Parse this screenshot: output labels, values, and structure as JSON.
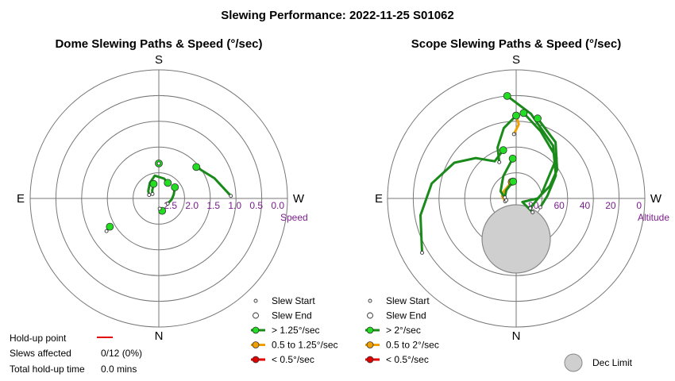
{
  "title": "Slewing Performance: 2022-11-25 S01062",
  "chart_data": [
    {
      "type": "polar",
      "title": "Dome Slewing Paths & Speed (°/sec)",
      "cardinals": {
        "top": "S",
        "left": "E",
        "right": "W",
        "bottom": "N"
      },
      "radial_label": "Speed",
      "radial_ticks": [
        "2.5",
        "2.0",
        "1.5",
        "1.0",
        "0.5",
        "0.0"
      ],
      "speed_range": [
        0.0,
        2.5
      ],
      "note": "polar angle = azimuth; radius = speed (outer ring = 0.0 °/sec)",
      "paths": [
        {
          "speed_class": "fast",
          "points": [
            [
              180,
              1.82
            ],
            [
              180,
              1.82
            ]
          ]
        },
        {
          "speed_class": "fast",
          "points": [
            [
              230,
              1.55
            ],
            [
              250,
              1.35
            ],
            [
              268,
              1.1
            ]
          ]
        },
        {
          "speed_class": "fast",
          "points": [
            [
              60,
              1.4
            ],
            [
              58,
              1.3
            ]
          ]
        },
        {
          "speed_class": "fast",
          "points": [
            [
              210,
              2.15
            ],
            [
              195,
              2.1
            ],
            [
              170,
              2.05
            ],
            [
              150,
              2.15
            ],
            [
              125,
              2.25
            ],
            [
              110,
              2.3
            ]
          ]
        },
        {
          "speed_class": "fast",
          "points": [
            [
              235,
              2.12
            ],
            [
              255,
              2.2
            ],
            [
              275,
              2.25
            ],
            [
              300,
              2.3
            ]
          ]
        },
        {
          "speed_class": "fast",
          "points": [
            [
              160,
              2.2
            ],
            [
              140,
              2.3
            ],
            [
              125,
              2.35
            ]
          ]
        },
        {
          "speed_class": "fast",
          "points": [
            [
              345,
              2.25
            ],
            [
              355,
              2.3
            ]
          ]
        }
      ],
      "legend": [
        {
          "label": "Slew Start",
          "kind": "start"
        },
        {
          "label": "Slew End",
          "kind": "end"
        },
        {
          "label": "> 1.25°/sec",
          "kind": "line",
          "color": "#1a8a1a",
          "marker": "#22dd22"
        },
        {
          "label": "0.5 to 1.25°/sec",
          "kind": "line",
          "color": "#f0a000",
          "marker": "#f0a000"
        },
        {
          "label": "< 0.5°/sec",
          "kind": "line",
          "color": "#e00000",
          "marker": "#e00000"
        }
      ],
      "holdup": {
        "point_label": "Hold-up point",
        "affected_label": "Slews affected",
        "affected_value": "0/12 (0%)",
        "total_label": "Total hold-up time",
        "total_value": "0.0 mins",
        "line_color": "#e00000"
      }
    },
    {
      "type": "polar",
      "title": "Scope Slewing Paths & Speed (°/sec)",
      "cardinals": {
        "top": "S",
        "left": "E",
        "right": "W",
        "bottom": "N"
      },
      "radial_label": "Altitude",
      "radial_ticks": [
        "80",
        "60",
        "40",
        "20",
        "0"
      ],
      "altitude_range": [
        0,
        90
      ],
      "note": "polar angle = azimuth; radius = 90 - altitude",
      "paths": [
        {
          "speed_class": "medium",
          "points": [
            [
              180,
              32
            ],
            [
              182,
              38
            ],
            [
              178,
              45
            ]
          ]
        },
        {
          "speed_class": "fast",
          "points": [
            [
              180,
              32
            ],
            [
              170,
              40
            ],
            [
              160,
              52
            ],
            [
              155,
              62
            ]
          ]
        },
        {
          "speed_class": "fast",
          "points": [
            [
              175,
              18
            ],
            [
              190,
              30
            ],
            [
              215,
              45
            ],
            [
              240,
              58
            ],
            [
              265,
              68
            ],
            [
              290,
              72
            ]
          ]
        },
        {
          "speed_class": "fast",
          "points": [
            [
              165,
              55
            ],
            [
              150,
              60
            ],
            [
              135,
              50
            ],
            [
              120,
              40
            ],
            [
              100,
              30
            ],
            [
              80,
              22
            ],
            [
              60,
              14
            ]
          ]
        },
        {
          "speed_class": "fast",
          "points": [
            [
              195,
              32
            ],
            [
              215,
              42
            ],
            [
              235,
              55
            ],
            [
              250,
              65
            ],
            [
              270,
              75
            ],
            [
              300,
              85
            ],
            [
              310,
              75
            ]
          ]
        },
        {
          "speed_class": "fast",
          "points": [
            [
              185,
              30
            ],
            [
              200,
              40
            ],
            [
              225,
              50
            ],
            [
              260,
              72
            ],
            [
              305,
              78
            ]
          ]
        },
        {
          "speed_class": "medium",
          "points": [
            [
              165,
              78
            ],
            [
              120,
              80
            ],
            [
              100,
              80
            ],
            [
              75,
              82
            ]
          ]
        },
        {
          "speed_class": "fast",
          "points": [
            [
              175,
              62
            ],
            [
              150,
              72
            ],
            [
              115,
              78
            ],
            [
              80,
              83
            ]
          ]
        },
        {
          "speed_class": "fast",
          "points": [
            [
              170,
              78
            ],
            [
              130,
              81
            ],
            [
              95,
              82
            ]
          ]
        }
      ],
      "legend": [
        {
          "label": "Slew Start",
          "kind": "start"
        },
        {
          "label": "Slew End",
          "kind": "end"
        },
        {
          "label": "> 2°/sec",
          "kind": "line",
          "color": "#1a8a1a",
          "marker": "#22dd22"
        },
        {
          "label": "0.5 to 2°/sec",
          "kind": "line",
          "color": "#f0a000",
          "marker": "#f0a000"
        },
        {
          "label": "< 0.5°/sec",
          "kind": "line",
          "color": "#e00000",
          "marker": "#e00000"
        }
      ],
      "dec_limit": {
        "label": "Dec Limit",
        "fill": "#cfcfcf"
      }
    }
  ],
  "colors": {
    "ring": "#777777",
    "tick": "#7a1e8c",
    "fast": "#1a8a1a",
    "fast_marker": "#22dd22",
    "medium": "#f0a000",
    "slow": "#e00000"
  }
}
